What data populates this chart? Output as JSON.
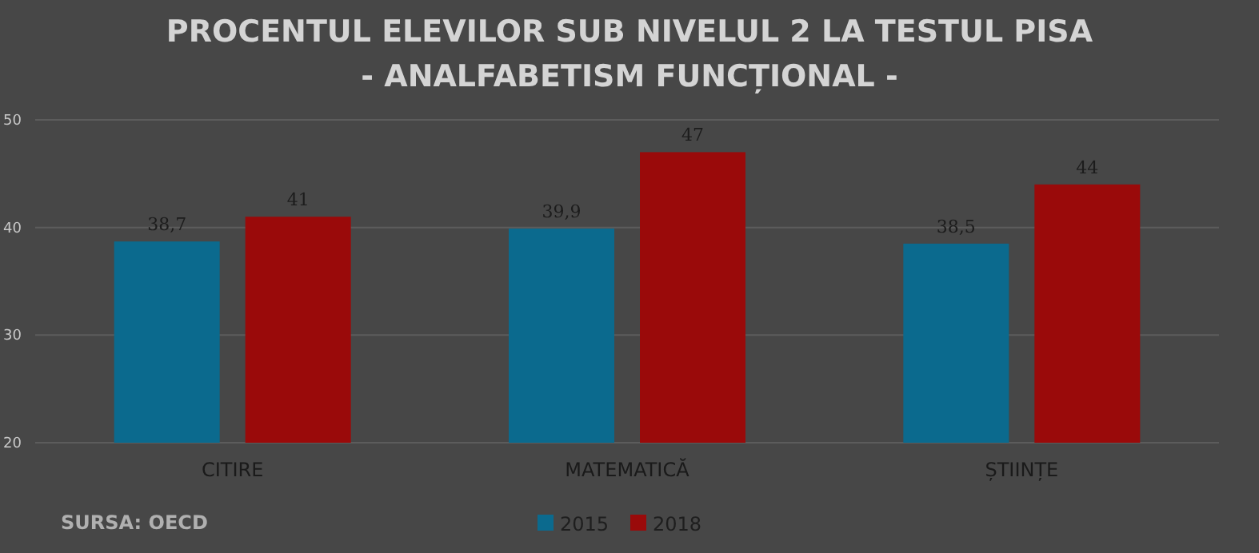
{
  "chart_data": {
    "type": "bar",
    "title": "PROCENTUL ELEVILOR SUB NIVELUL 2 LA TESTUL PISA",
    "subtitle": "- ANALFABETISM FUNCȚIONAL -",
    "categories": [
      "CITIRE",
      "MATEMATICĂ",
      "ȘTIINȚE"
    ],
    "series": [
      {
        "name": "2015",
        "color": "#0b6a8e",
        "values": [
          38.7,
          39.9,
          38.5
        ],
        "value_labels": [
          "38,7",
          "39,9",
          "38,5"
        ]
      },
      {
        "name": "2018",
        "color": "#9a0a0a",
        "values": [
          41,
          47,
          44
        ],
        "value_labels": [
          "41",
          "47",
          "44"
        ]
      }
    ],
    "ylim": [
      20,
      50
    ],
    "yticks": [
      20,
      30,
      40,
      50
    ],
    "grid": "y",
    "legend": "bottom",
    "annotations": [
      "SURSA: OECD"
    ]
  }
}
